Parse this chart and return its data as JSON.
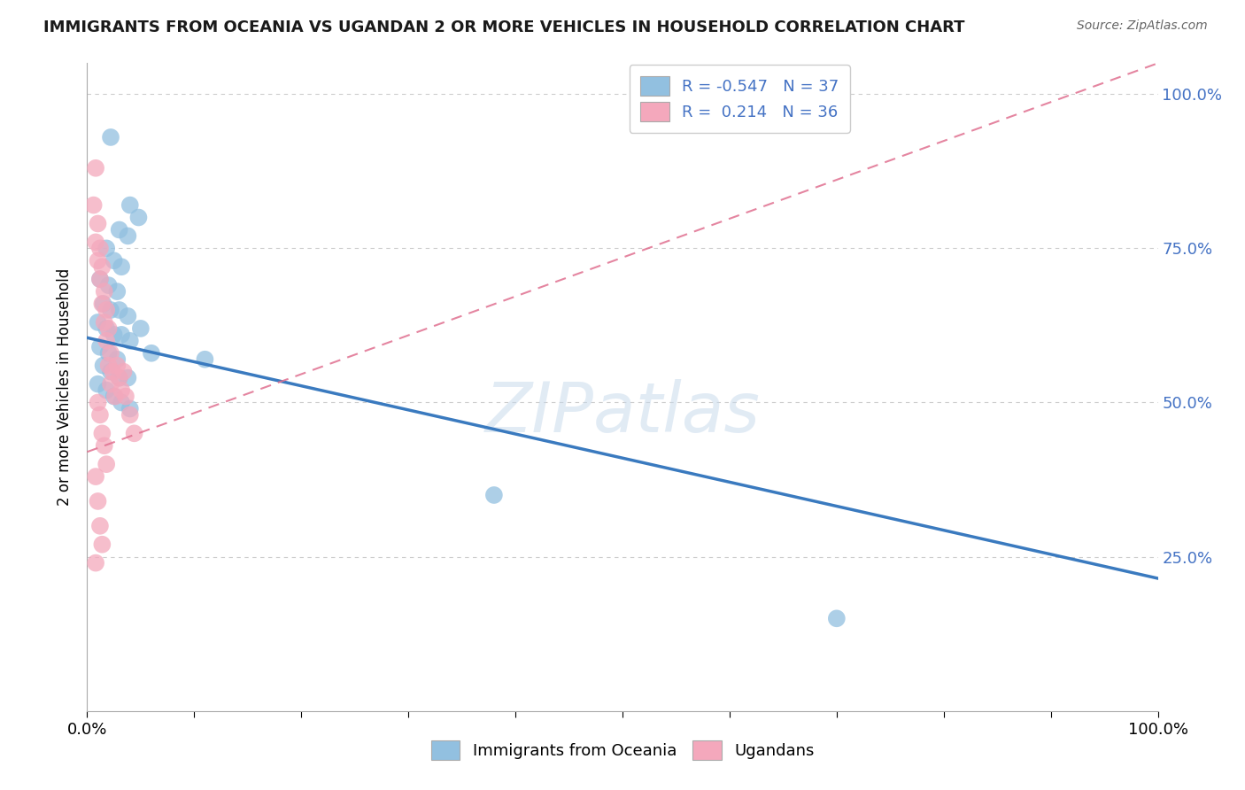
{
  "title": "IMMIGRANTS FROM OCEANIA VS UGANDAN 2 OR MORE VEHICLES IN HOUSEHOLD CORRELATION CHART",
  "source": "Source: ZipAtlas.com",
  "ylabel": "2 or more Vehicles in Household",
  "ytick_positions": [
    0.25,
    0.5,
    0.75,
    1.0
  ],
  "xlim": [
    0.0,
    1.0
  ],
  "ylim": [
    0.0,
    1.05
  ],
  "watermark": "ZIPatlas",
  "blue_color": "#92c0e0",
  "pink_color": "#f4a8bc",
  "trendline_blue_color": "#3a7abf",
  "trendline_pink_color": "#e07090",
  "blue_scatter": [
    [
      0.022,
      0.93
    ],
    [
      0.04,
      0.82
    ],
    [
      0.048,
      0.8
    ],
    [
      0.03,
      0.78
    ],
    [
      0.038,
      0.77
    ],
    [
      0.018,
      0.75
    ],
    [
      0.025,
      0.73
    ],
    [
      0.032,
      0.72
    ],
    [
      0.012,
      0.7
    ],
    [
      0.02,
      0.69
    ],
    [
      0.028,
      0.68
    ],
    [
      0.015,
      0.66
    ],
    [
      0.022,
      0.65
    ],
    [
      0.03,
      0.65
    ],
    [
      0.038,
      0.64
    ],
    [
      0.01,
      0.63
    ],
    [
      0.018,
      0.62
    ],
    [
      0.025,
      0.61
    ],
    [
      0.032,
      0.61
    ],
    [
      0.04,
      0.6
    ],
    [
      0.012,
      0.59
    ],
    [
      0.02,
      0.58
    ],
    [
      0.028,
      0.57
    ],
    [
      0.015,
      0.56
    ],
    [
      0.022,
      0.55
    ],
    [
      0.03,
      0.54
    ],
    [
      0.038,
      0.54
    ],
    [
      0.01,
      0.53
    ],
    [
      0.018,
      0.52
    ],
    [
      0.025,
      0.51
    ],
    [
      0.032,
      0.5
    ],
    [
      0.04,
      0.49
    ],
    [
      0.11,
      0.57
    ],
    [
      0.38,
      0.35
    ],
    [
      0.7,
      0.15
    ],
    [
      0.05,
      0.62
    ],
    [
      0.06,
      0.58
    ]
  ],
  "pink_scatter": [
    [
      0.008,
      0.88
    ],
    [
      0.006,
      0.82
    ],
    [
      0.01,
      0.79
    ],
    [
      0.008,
      0.76
    ],
    [
      0.012,
      0.75
    ],
    [
      0.01,
      0.73
    ],
    [
      0.014,
      0.72
    ],
    [
      0.012,
      0.7
    ],
    [
      0.016,
      0.68
    ],
    [
      0.014,
      0.66
    ],
    [
      0.018,
      0.65
    ],
    [
      0.016,
      0.63
    ],
    [
      0.02,
      0.62
    ],
    [
      0.018,
      0.6
    ],
    [
      0.022,
      0.58
    ],
    [
      0.02,
      0.56
    ],
    [
      0.024,
      0.55
    ],
    [
      0.022,
      0.53
    ],
    [
      0.026,
      0.51
    ],
    [
      0.028,
      0.56
    ],
    [
      0.03,
      0.54
    ],
    [
      0.032,
      0.52
    ],
    [
      0.01,
      0.5
    ],
    [
      0.012,
      0.48
    ],
    [
      0.014,
      0.45
    ],
    [
      0.016,
      0.43
    ],
    [
      0.018,
      0.4
    ],
    [
      0.008,
      0.38
    ],
    [
      0.01,
      0.34
    ],
    [
      0.012,
      0.3
    ],
    [
      0.014,
      0.27
    ],
    [
      0.008,
      0.24
    ],
    [
      0.034,
      0.55
    ],
    [
      0.036,
      0.51
    ],
    [
      0.04,
      0.48
    ],
    [
      0.044,
      0.45
    ]
  ],
  "blue_R": -0.547,
  "blue_N": 37,
  "pink_R": 0.214,
  "pink_N": 36,
  "grid_color": "#cccccc",
  "bg_color": "#ffffff",
  "blue_trend_x": [
    0.0,
    1.0
  ],
  "blue_trend_y": [
    0.605,
    0.215
  ],
  "pink_trend_x": [
    0.0,
    1.0
  ],
  "pink_trend_y": [
    0.42,
    1.05
  ]
}
